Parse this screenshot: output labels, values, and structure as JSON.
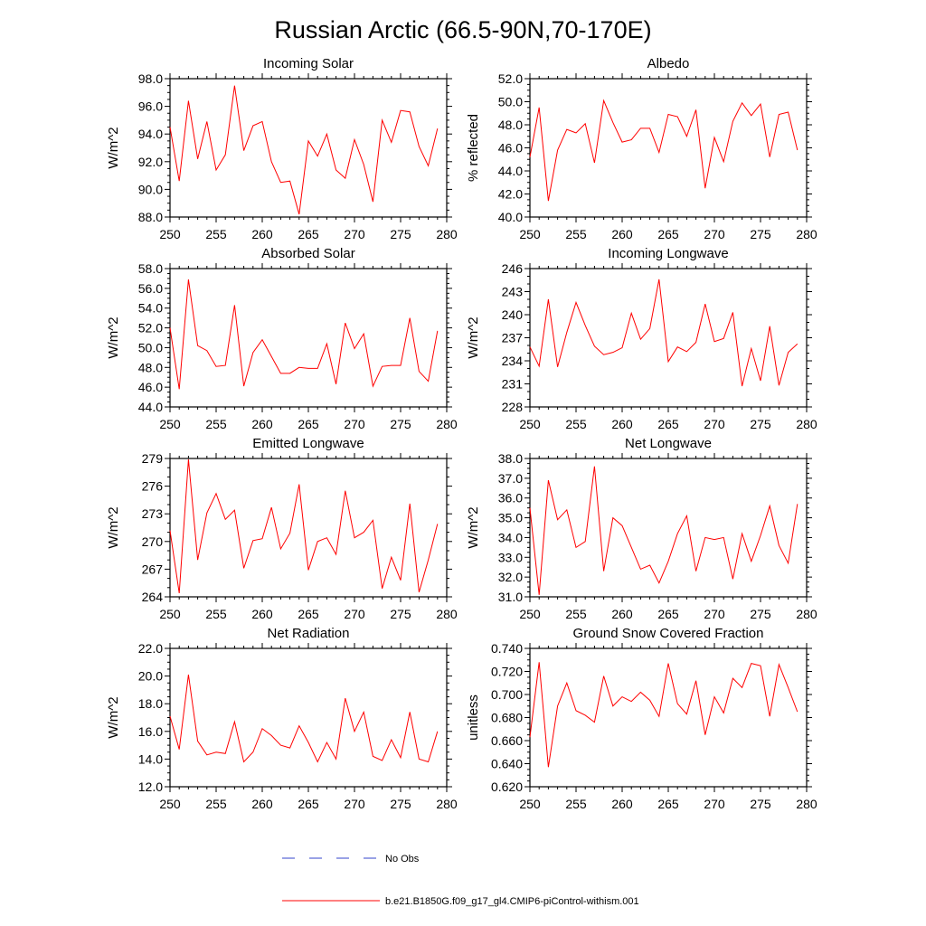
{
  "title": "Russian Arctic (66.5-90N,70-170E)",
  "legend": [
    {
      "label": "No Obs",
      "color": "#3344cc",
      "style": "dashed"
    },
    {
      "label": "b.e21.B1850G.f09_g17_gl4.CMIP6-piControl-withism.001",
      "color": "#ff0000",
      "style": "solid"
    }
  ],
  "chart_data": [
    {
      "type": "line",
      "title": "Incoming Solar",
      "ylabel": "W/m^2",
      "xlim": [
        250,
        280
      ],
      "ylim": [
        88,
        98
      ],
      "xticks": [
        250,
        255,
        260,
        265,
        270,
        275,
        280
      ],
      "yticks": [
        "88.0",
        "90.0",
        "92.0",
        "94.0",
        "96.0",
        "98.0"
      ],
      "x": [
        250,
        251,
        252,
        253,
        254,
        255,
        256,
        257,
        258,
        259,
        260,
        261,
        262,
        263,
        264,
        265,
        266,
        267,
        268,
        269,
        270,
        271,
        272,
        273,
        274,
        275,
        276,
        277,
        278,
        279
      ],
      "series": [
        {
          "name": "b.e21.B1850G.f09_g17_gl4.CMIP6-piControl-withism.001",
          "color": "#ff0000",
          "values": [
            94.5,
            90.6,
            96.4,
            92.2,
            94.9,
            91.4,
            92.5,
            97.5,
            92.8,
            94.6,
            94.9,
            92.0,
            90.5,
            90.6,
            88.2,
            93.5,
            92.4,
            94.0,
            91.4,
            90.8,
            93.6,
            91.8,
            89.1,
            95.0,
            93.4,
            95.7,
            95.6,
            93.1,
            91.7,
            94.4
          ]
        }
      ]
    },
    {
      "type": "line",
      "title": "Albedo",
      "ylabel": "% reflected",
      "xlim": [
        250,
        280
      ],
      "ylim": [
        40,
        52
      ],
      "xticks": [
        250,
        255,
        260,
        265,
        270,
        275,
        280
      ],
      "yticks": [
        "40.0",
        "42.0",
        "44.0",
        "46.0",
        "48.0",
        "50.0",
        "52.0"
      ],
      "x": [
        250,
        251,
        252,
        253,
        254,
        255,
        256,
        257,
        258,
        259,
        260,
        261,
        262,
        263,
        264,
        265,
        266,
        267,
        268,
        269,
        270,
        271,
        272,
        273,
        274,
        275,
        276,
        277,
        278,
        279
      ],
      "series": [
        {
          "name": "b.e21.B1850G.f09_g17_gl4.CMIP6-piControl-withism.001",
          "color": "#ff0000",
          "values": [
            45.2,
            49.5,
            41.4,
            45.8,
            47.6,
            47.3,
            48.1,
            44.7,
            50.1,
            48.2,
            46.5,
            46.7,
            47.7,
            47.7,
            45.6,
            48.9,
            48.7,
            47.0,
            49.3,
            42.5,
            46.9,
            44.8,
            48.3,
            49.9,
            48.8,
            49.8,
            45.2,
            48.9,
            49.1,
            45.8
          ]
        }
      ]
    },
    {
      "type": "line",
      "title": "Absorbed Solar",
      "ylabel": "W/m^2",
      "xlim": [
        250,
        280
      ],
      "ylim": [
        44,
        58
      ],
      "xticks": [
        250,
        255,
        260,
        265,
        270,
        275,
        280
      ],
      "yticks": [
        "44.0",
        "46.0",
        "48.0",
        "50.0",
        "52.0",
        "54.0",
        "56.0",
        "58.0"
      ],
      "x": [
        250,
        251,
        252,
        253,
        254,
        255,
        256,
        257,
        258,
        259,
        260,
        261,
        262,
        263,
        264,
        265,
        266,
        267,
        268,
        269,
        270,
        271,
        272,
        273,
        274,
        275,
        276,
        277,
        278,
        279
      ],
      "series": [
        {
          "name": "b.e21.B1850G.f09_g17_gl4.CMIP6-piControl-withism.001",
          "color": "#ff0000",
          "values": [
            52.0,
            45.8,
            56.9,
            50.2,
            49.7,
            48.1,
            48.2,
            54.3,
            46.1,
            49.5,
            50.8,
            49.1,
            47.4,
            47.4,
            48.0,
            47.9,
            47.9,
            50.4,
            46.3,
            52.5,
            49.9,
            51.4,
            46.1,
            48.1,
            48.2,
            48.2,
            53.0,
            47.6,
            46.6,
            51.7
          ]
        }
      ]
    },
    {
      "type": "line",
      "title": "Incoming Longwave",
      "ylabel": "W/m^2",
      "xlim": [
        250,
        280
      ],
      "ylim": [
        228,
        246
      ],
      "xticks": [
        250,
        255,
        260,
        265,
        270,
        275,
        280
      ],
      "yticks": [
        "228",
        "231",
        "234",
        "237",
        "240",
        "243",
        "246"
      ],
      "x": [
        250,
        251,
        252,
        253,
        254,
        255,
        256,
        257,
        258,
        259,
        260,
        261,
        262,
        263,
        264,
        265,
        266,
        267,
        268,
        269,
        270,
        271,
        272,
        273,
        274,
        275,
        276,
        277,
        278,
        279
      ],
      "series": [
        {
          "name": "b.e21.B1850G.f09_g17_gl4.CMIP6-piControl-withism.001",
          "color": "#ff0000",
          "values": [
            235.8,
            233.3,
            242.0,
            233.2,
            237.7,
            241.6,
            238.6,
            235.9,
            234.8,
            235.1,
            235.7,
            240.2,
            236.8,
            238.2,
            244.6,
            233.9,
            235.8,
            235.2,
            236.4,
            241.4,
            236.5,
            236.9,
            240.3,
            230.7,
            235.6,
            231.4,
            238.5,
            230.8,
            235.1,
            236.2
          ]
        }
      ]
    },
    {
      "type": "line",
      "title": "Emitted Longwave",
      "ylabel": "W/m^2",
      "xlim": [
        250,
        280
      ],
      "ylim": [
        264,
        279
      ],
      "xticks": [
        250,
        255,
        260,
        265,
        270,
        275,
        280
      ],
      "yticks": [
        "264",
        "267",
        "270",
        "273",
        "276",
        "279"
      ],
      "x": [
        250,
        251,
        252,
        253,
        254,
        255,
        256,
        257,
        258,
        259,
        260,
        261,
        262,
        263,
        264,
        265,
        266,
        267,
        268,
        269,
        270,
        271,
        272,
        273,
        274,
        275,
        276,
        277,
        278,
        279
      ],
      "series": [
        {
          "name": "b.e21.B1850G.f09_g17_gl4.CMIP6-piControl-withism.001",
          "color": "#ff0000",
          "values": [
            271.2,
            264.4,
            278.9,
            268.0,
            273.1,
            275.2,
            272.4,
            273.4,
            267.1,
            270.1,
            270.3,
            273.7,
            269.2,
            270.9,
            276.2,
            266.9,
            270.0,
            270.4,
            268.6,
            275.5,
            270.4,
            271.0,
            272.3,
            264.9,
            268.3,
            265.8,
            274.1,
            264.5,
            268.0,
            271.9
          ]
        }
      ]
    },
    {
      "type": "line",
      "title": "Net Longwave",
      "ylabel": "W/m^2",
      "xlim": [
        250,
        280
      ],
      "ylim": [
        31,
        38
      ],
      "xticks": [
        250,
        255,
        260,
        265,
        270,
        275,
        280
      ],
      "yticks": [
        "31.0",
        "32.0",
        "33.0",
        "34.0",
        "35.0",
        "36.0",
        "37.0",
        "38.0"
      ],
      "x": [
        250,
        251,
        252,
        253,
        254,
        255,
        256,
        257,
        258,
        259,
        260,
        261,
        262,
        263,
        264,
        265,
        266,
        267,
        268,
        269,
        270,
        271,
        272,
        273,
        274,
        275,
        276,
        277,
        278,
        279
      ],
      "series": [
        {
          "name": "b.e21.B1850G.f09_g17_gl4.CMIP6-piControl-withism.001",
          "color": "#ff0000",
          "values": [
            35.5,
            31.1,
            36.9,
            34.9,
            35.4,
            33.5,
            33.8,
            37.6,
            32.3,
            35.0,
            34.6,
            33.5,
            32.4,
            32.6,
            31.7,
            32.8,
            34.2,
            35.1,
            32.3,
            34.0,
            33.9,
            34.0,
            31.9,
            34.2,
            32.8,
            34.1,
            35.6,
            33.6,
            32.7,
            35.7
          ]
        }
      ]
    },
    {
      "type": "line",
      "title": "Net Radiation",
      "ylabel": "W/m^2",
      "xlim": [
        250,
        280
      ],
      "ylim": [
        12,
        22
      ],
      "xticks": [
        250,
        255,
        260,
        265,
        270,
        275,
        280
      ],
      "yticks": [
        "12.0",
        "14.0",
        "16.0",
        "18.0",
        "20.0",
        "22.0"
      ],
      "x": [
        250,
        251,
        252,
        253,
        254,
        255,
        256,
        257,
        258,
        259,
        260,
        261,
        262,
        263,
        264,
        265,
        266,
        267,
        268,
        269,
        270,
        271,
        272,
        273,
        274,
        275,
        276,
        277,
        278,
        279
      ],
      "series": [
        {
          "name": "b.e21.B1850G.f09_g17_gl4.CMIP6-piControl-withism.001",
          "color": "#ff0000",
          "values": [
            17.1,
            14.7,
            20.1,
            15.3,
            14.3,
            14.5,
            14.4,
            16.7,
            13.8,
            14.5,
            16.2,
            15.7,
            15.0,
            14.8,
            16.4,
            15.2,
            13.8,
            15.2,
            14.0,
            18.4,
            16.0,
            17.4,
            14.2,
            13.9,
            15.4,
            14.1,
            17.4,
            14.0,
            13.8,
            16.0
          ]
        }
      ]
    },
    {
      "type": "line",
      "title": "Ground Snow Covered Fraction",
      "ylabel": "unitless",
      "xlim": [
        250,
        280
      ],
      "ylim": [
        0.62,
        0.74
      ],
      "xticks": [
        250,
        255,
        260,
        265,
        270,
        275,
        280
      ],
      "yticks": [
        "0.620",
        "0.640",
        "0.660",
        "0.680",
        "0.700",
        "0.720",
        "0.740"
      ],
      "x": [
        250,
        251,
        252,
        253,
        254,
        255,
        256,
        257,
        258,
        259,
        260,
        261,
        262,
        263,
        264,
        265,
        266,
        267,
        268,
        269,
        270,
        271,
        272,
        273,
        274,
        275,
        276,
        277,
        278,
        279
      ],
      "series": [
        {
          "name": "b.e21.B1850G.f09_g17_gl4.CMIP6-piControl-withism.001",
          "color": "#ff0000",
          "values": [
            0.663,
            0.728,
            0.637,
            0.69,
            0.71,
            0.686,
            0.682,
            0.676,
            0.716,
            0.69,
            0.698,
            0.694,
            0.702,
            0.695,
            0.681,
            0.727,
            0.692,
            0.683,
            0.712,
            0.665,
            0.698,
            0.684,
            0.714,
            0.706,
            0.727,
            0.725,
            0.681,
            0.726,
            0.706,
            0.685
          ]
        }
      ]
    }
  ]
}
